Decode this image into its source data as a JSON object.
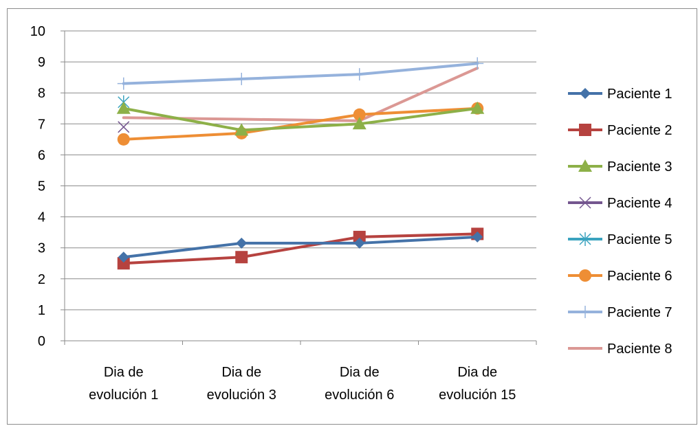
{
  "chart_data": {
    "type": "line",
    "categories": [
      [
        "Dia de",
        "evolución 1"
      ],
      [
        "Dia de",
        "evolución 3"
      ],
      [
        "Dia de",
        "evolución 6"
      ],
      [
        "Dia de",
        "evolución 15"
      ]
    ],
    "ylim": [
      0,
      10
    ],
    "yticks": [
      "0",
      "1",
      "2",
      "3",
      "4",
      "5",
      "6",
      "7",
      "8",
      "9",
      "10"
    ],
    "grid": true,
    "legend_position": "right",
    "series": [
      {
        "name": "Paciente 1",
        "values": [
          2.7,
          3.15,
          3.15,
          3.35
        ],
        "color": "#4472a8",
        "marker": "diamond"
      },
      {
        "name": "Paciente 2",
        "values": [
          2.5,
          2.7,
          3.35,
          3.45
        ],
        "color": "#b6423f",
        "marker": "square"
      },
      {
        "name": "Paciente 3",
        "values": [
          7.5,
          6.8,
          7.0,
          7.5
        ],
        "color": "#8db048",
        "marker": "triangle"
      },
      {
        "name": "Paciente 4",
        "values": [
          6.9,
          null,
          null,
          null
        ],
        "color": "#74568f",
        "marker": "x"
      },
      {
        "name": "Paciente 5",
        "values": [
          7.7,
          null,
          null,
          null
        ],
        "color": "#3aa3bf",
        "marker": "star"
      },
      {
        "name": "Paciente 6",
        "values": [
          6.5,
          6.7,
          7.3,
          7.5
        ],
        "color": "#ee8e35",
        "marker": "circle"
      },
      {
        "name": "Paciente 7",
        "values": [
          8.3,
          8.45,
          8.6,
          8.95
        ],
        "color": "#95b2dc",
        "marker": "plus"
      },
      {
        "name": "Paciente 8",
        "values": [
          7.2,
          7.15,
          7.1,
          8.8
        ],
        "color": "#db9894",
        "marker": "none"
      }
    ]
  }
}
